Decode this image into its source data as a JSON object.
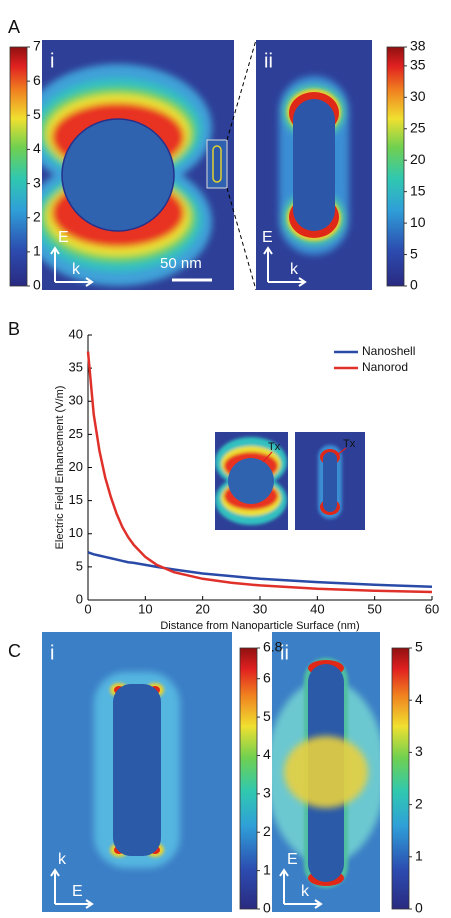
{
  "panel_A": {
    "label": "A",
    "i": {
      "label": "i",
      "E": "E",
      "k": "k",
      "scale": "50 nm",
      "colorbar": {
        "lim": [
          0,
          7
        ],
        "ticks": [
          0,
          1,
          2,
          3,
          4,
          5,
          6,
          7
        ]
      }
    },
    "ii": {
      "label": "ii",
      "E": "E",
      "k": "k",
      "colorbar": {
        "lim": [
          0,
          38
        ],
        "ticks": [
          0,
          5,
          10,
          15,
          20,
          25,
          30,
          35,
          38
        ]
      }
    }
  },
  "chart_data": {
    "type": "line",
    "panel_label": "B",
    "x_label": "Distance from Nanoparticle Surface (nm)",
    "y_label": "Electric Field Enhancement (V/m)",
    "x": [
      0,
      1,
      2,
      3,
      4,
      5,
      6,
      7,
      8,
      10,
      12,
      15,
      20,
      25,
      30,
      40,
      50,
      60
    ],
    "series": [
      {
        "name": "Nanoshell",
        "color": "#2a4aa8",
        "values": [
          7.2,
          6.9,
          6.7,
          6.5,
          6.3,
          6.1,
          5.9,
          5.7,
          5.6,
          5.3,
          5.0,
          4.6,
          4.0,
          3.6,
          3.2,
          2.7,
          2.3,
          2.0
        ]
      },
      {
        "name": "Nanorod",
        "color": "#e0302a",
        "values": [
          37.5,
          28,
          22.5,
          18.5,
          15.5,
          13,
          11,
          9.5,
          8.3,
          6.5,
          5.3,
          4.2,
          3.2,
          2.6,
          2.2,
          1.7,
          1.4,
          1.2
        ]
      }
    ],
    "xlim": [
      0,
      60
    ],
    "xticks": [
      0,
      10,
      20,
      30,
      40,
      50,
      60
    ],
    "ylim": [
      0,
      40
    ],
    "yticks": [
      0,
      5,
      10,
      15,
      20,
      25,
      30,
      35,
      40
    ],
    "legend": "upper right",
    "insets": [
      "Tx",
      "Tx"
    ]
  },
  "panel_C": {
    "label": "C",
    "i": {
      "label": "i",
      "E": "E",
      "k": "k",
      "colorbar": {
        "lim": [
          0,
          6.8
        ],
        "ticks": [
          0,
          1,
          2,
          3,
          4,
          5,
          6,
          6.8
        ]
      }
    },
    "ii": {
      "label": "ii",
      "E": "E",
      "k": "k",
      "colorbar": {
        "lim": [
          0,
          5
        ],
        "ticks": [
          0,
          1,
          2,
          3,
          4,
          5
        ]
      }
    }
  }
}
